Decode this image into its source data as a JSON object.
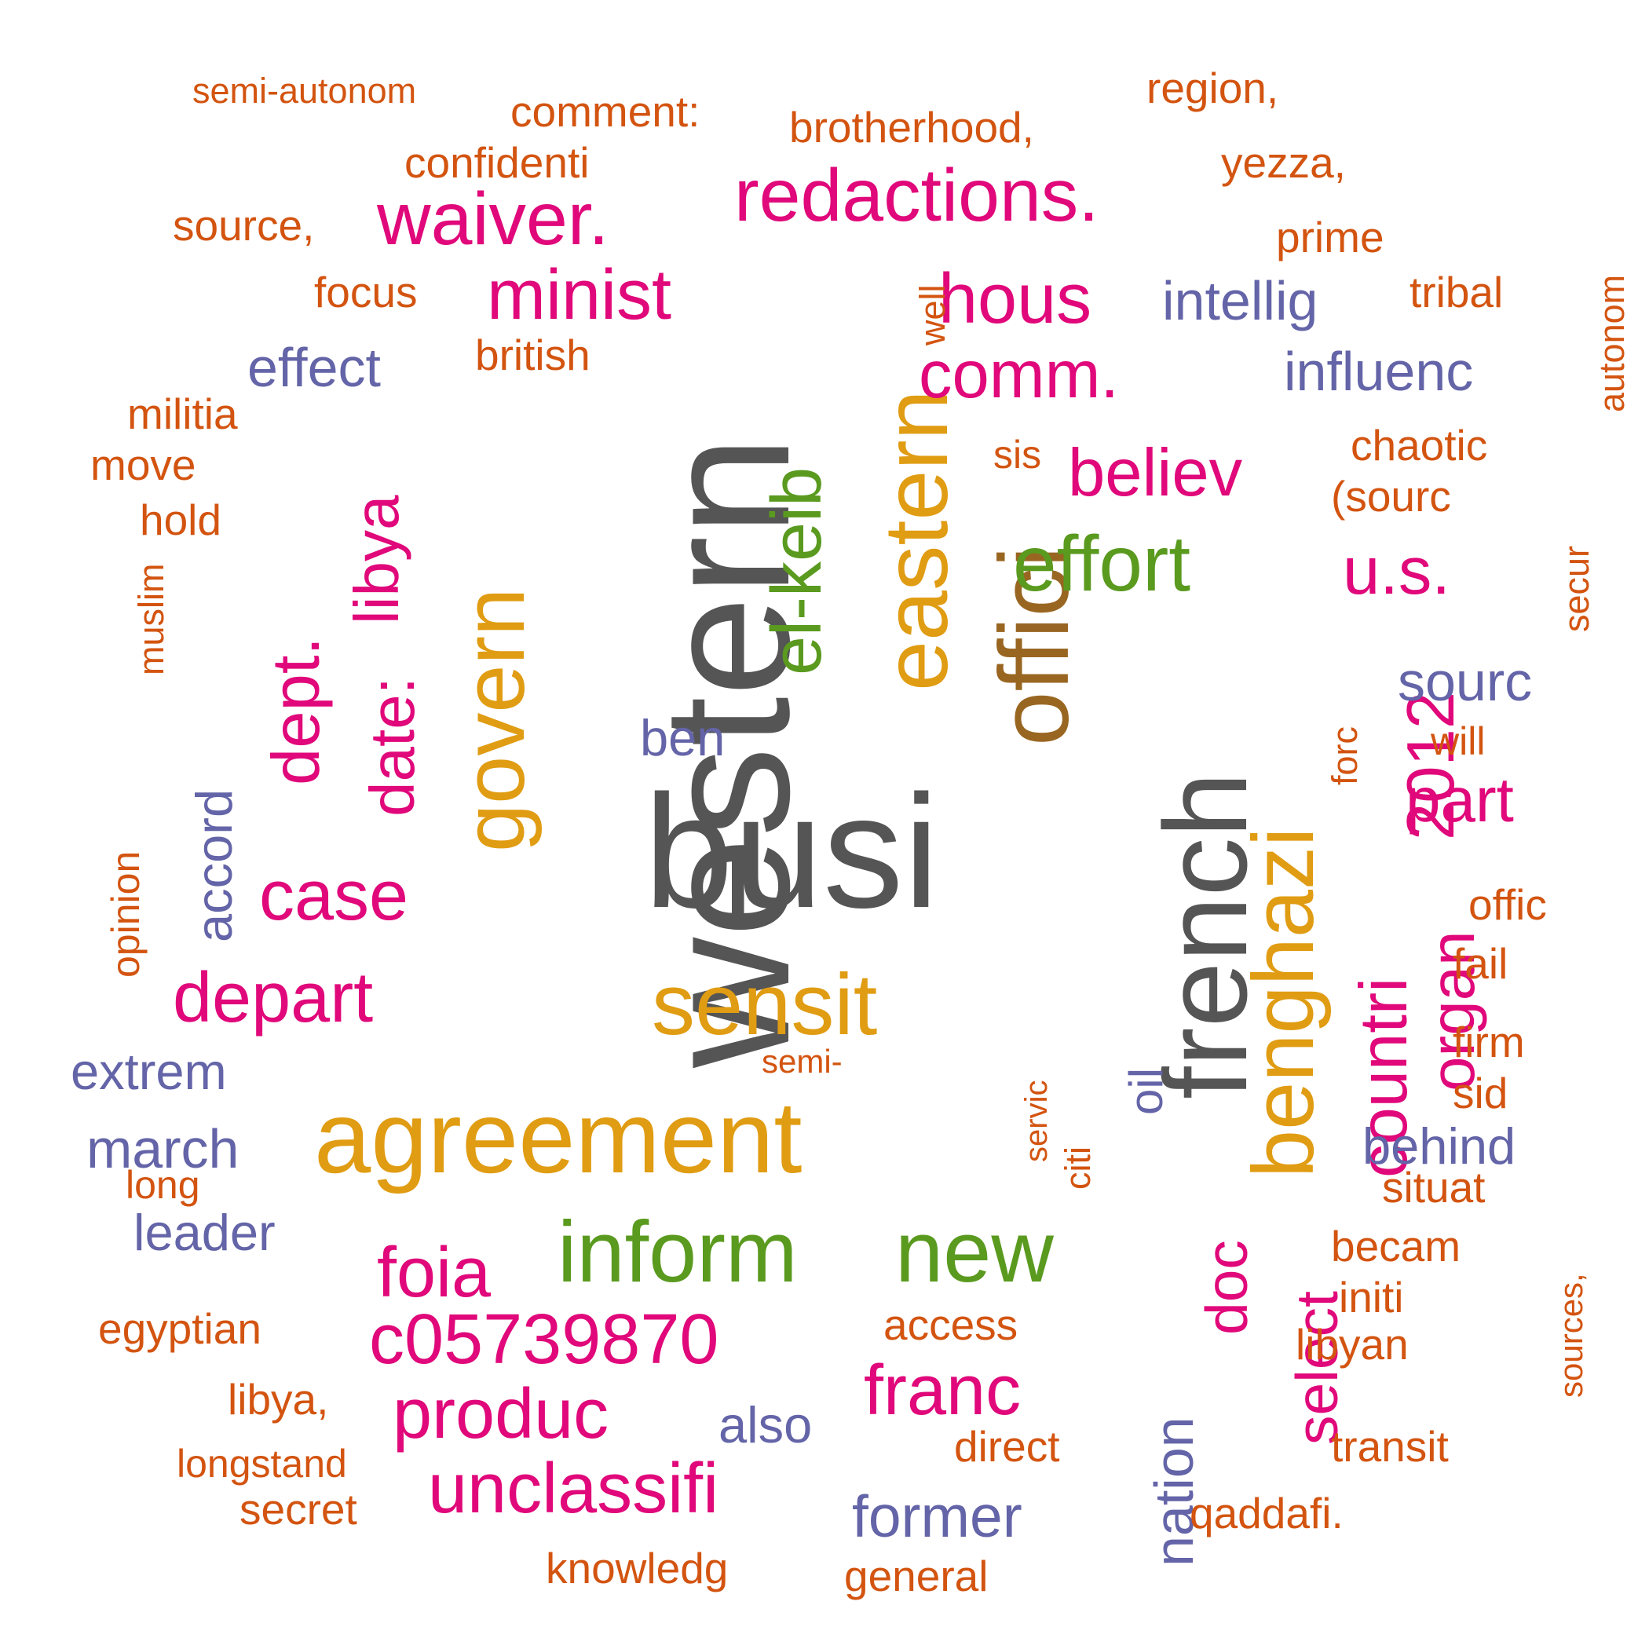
{
  "words": [
    {
      "text": "western",
      "color": "#555555",
      "rotated": true
    },
    {
      "text": "busi",
      "color": "#555555",
      "rotated": false
    },
    {
      "text": "french",
      "color": "#555555",
      "rotated": true
    },
    {
      "text": "offici",
      "color": "#996622",
      "rotated": true
    },
    {
      "text": "eastern",
      "color": "#e09c12",
      "rotated": true
    },
    {
      "text": "agreement",
      "color": "#e09c12",
      "rotated": false
    },
    {
      "text": "sensit",
      "color": "#e09c12",
      "rotated": false
    },
    {
      "text": "govern",
      "color": "#e09c12",
      "rotated": true
    },
    {
      "text": "benghazi",
      "color": "#e09c12",
      "rotated": true
    },
    {
      "text": "el-keib",
      "color": "#5a9a1f",
      "rotated": true
    },
    {
      "text": "effort",
      "color": "#5a9a1f",
      "rotated": false
    },
    {
      "text": "inform",
      "color": "#5a9a1f",
      "rotated": false
    },
    {
      "text": "new",
      "color": "#5a9a1f",
      "rotated": false
    },
    {
      "text": "redactions.",
      "color": "#e0087a",
      "rotated": false
    },
    {
      "text": "waiver.",
      "color": "#e0087a",
      "rotated": false
    },
    {
      "text": "minist",
      "color": "#e0087a",
      "rotated": false
    },
    {
      "text": "hous",
      "color": "#e0087a",
      "rotated": false
    },
    {
      "text": "comm.",
      "color": "#e0087a",
      "rotated": false
    },
    {
      "text": "believ",
      "color": "#e0087a",
      "rotated": false
    },
    {
      "text": "u.s.",
      "color": "#e0087a",
      "rotated": false
    },
    {
      "text": "2012",
      "color": "#e0087a",
      "rotated": true
    },
    {
      "text": "part",
      "color": "#e0087a",
      "rotated": false
    },
    {
      "text": "countri",
      "color": "#e0087a",
      "rotated": true
    },
    {
      "text": "organ",
      "color": "#e0087a",
      "rotated": true
    },
    {
      "text": "dept.",
      "color": "#e0087a",
      "rotated": true
    },
    {
      "text": "libya",
      "color": "#e0087a",
      "rotated": true
    },
    {
      "text": "date:",
      "color": "#e0087a",
      "rotated": true
    },
    {
      "text": "case",
      "color": "#e0087a",
      "rotated": false
    },
    {
      "text": "depart",
      "color": "#e0087a",
      "rotated": false
    },
    {
      "text": "foia",
      "color": "#e0087a",
      "rotated": false
    },
    {
      "text": "c05739870",
      "color": "#e0087a",
      "rotated": false
    },
    {
      "text": "produc",
      "color": "#e0087a",
      "rotated": false
    },
    {
      "text": "unclassifi",
      "color": "#e0087a",
      "rotated": false
    },
    {
      "text": "franc",
      "color": "#e0087a",
      "rotated": false
    },
    {
      "text": "doc",
      "color": "#e0087a",
      "rotated": true
    },
    {
      "text": "select",
      "color": "#e0087a",
      "rotated": true
    },
    {
      "text": "intellig",
      "color": "#6464a8",
      "rotated": false
    },
    {
      "text": "influenc",
      "color": "#6464a8",
      "rotated": false
    },
    {
      "text": "effect",
      "color": "#6464a8",
      "rotated": false
    },
    {
      "text": "sourc",
      "color": "#6464a8",
      "rotated": false
    },
    {
      "text": "ben",
      "color": "#6464a8",
      "rotated": false
    },
    {
      "text": "accord",
      "color": "#6464a8",
      "rotated": true
    },
    {
      "text": "extrem",
      "color": "#6464a8",
      "rotated": false
    },
    {
      "text": "march",
      "color": "#6464a8",
      "rotated": false
    },
    {
      "text": "leader",
      "color": "#6464a8",
      "rotated": false
    },
    {
      "text": "also",
      "color": "#6464a8",
      "rotated": false
    },
    {
      "text": "former",
      "color": "#6464a8",
      "rotated": false
    },
    {
      "text": "nation",
      "color": "#6464a8",
      "rotated": true
    },
    {
      "text": "oil",
      "color": "#6464a8",
      "rotated": true
    },
    {
      "text": "behind",
      "color": "#6464a8",
      "rotated": false
    },
    {
      "text": "semi-autonom",
      "color": "#d35410",
      "rotated": false
    },
    {
      "text": "comment:",
      "color": "#d35410",
      "rotated": false
    },
    {
      "text": "brotherhood,",
      "color": "#d35410",
      "rotated": false
    },
    {
      "text": "region,",
      "color": "#d35410",
      "rotated": false
    },
    {
      "text": "confidenti",
      "color": "#d35410",
      "rotated": false
    },
    {
      "text": "yezza,",
      "color": "#d35410",
      "rotated": false
    },
    {
      "text": "source,",
      "color": "#d35410",
      "rotated": false
    },
    {
      "text": "prime",
      "color": "#d35410",
      "rotated": false
    },
    {
      "text": "focus",
      "color": "#d35410",
      "rotated": false
    },
    {
      "text": "well",
      "color": "#d35410",
      "rotated": true
    },
    {
      "text": "tribal",
      "color": "#d35410",
      "rotated": false
    },
    {
      "text": "autonom",
      "color": "#d35410",
      "rotated": true
    },
    {
      "text": "british",
      "color": "#d35410",
      "rotated": false
    },
    {
      "text": "militia",
      "color": "#d35410",
      "rotated": false
    },
    {
      "text": "move",
      "color": "#d35410",
      "rotated": false
    },
    {
      "text": "hold",
      "color": "#d35410",
      "rotated": false
    },
    {
      "text": "muslim",
      "color": "#d35410",
      "rotated": true
    },
    {
      "text": "sis",
      "color": "#d35410",
      "rotated": false
    },
    {
      "text": "chaotic",
      "color": "#d35410",
      "rotated": false
    },
    {
      "text": "(sourc",
      "color": "#d35410",
      "rotated": false
    },
    {
      "text": "secur",
      "color": "#d35410",
      "rotated": true
    },
    {
      "text": "forc",
      "color": "#d35410",
      "rotated": true
    },
    {
      "text": "will",
      "color": "#d35410",
      "rotated": false
    },
    {
      "text": "opinion",
      "color": "#d35410",
      "rotated": true
    },
    {
      "text": "offic",
      "color": "#d35410",
      "rotated": false
    },
    {
      "text": "fail",
      "color": "#d35410",
      "rotated": false
    },
    {
      "text": "semi-",
      "color": "#d35410",
      "rotated": false
    },
    {
      "text": "firm",
      "color": "#d35410",
      "rotated": false
    },
    {
      "text": "sid",
      "color": "#d35410",
      "rotated": false
    },
    {
      "text": "servic",
      "color": "#d35410",
      "rotated": true
    },
    {
      "text": "citi",
      "color": "#d35410",
      "rotated": true
    },
    {
      "text": "long",
      "color": "#d35410",
      "rotated": false
    },
    {
      "text": "situat",
      "color": "#d35410",
      "rotated": false
    },
    {
      "text": "sources,",
      "color": "#d35410",
      "rotated": true
    },
    {
      "text": "becam",
      "color": "#d35410",
      "rotated": false
    },
    {
      "text": "initi",
      "color": "#d35410",
      "rotated": false
    },
    {
      "text": "egyptian",
      "color": "#d35410",
      "rotated": false
    },
    {
      "text": "access",
      "color": "#d35410",
      "rotated": false
    },
    {
      "text": "libyan",
      "color": "#d35410",
      "rotated": false
    },
    {
      "text": "libya,",
      "color": "#d35410",
      "rotated": false
    },
    {
      "text": "direct",
      "color": "#d35410",
      "rotated": false
    },
    {
      "text": "transit",
      "color": "#d35410",
      "rotated": false
    },
    {
      "text": "longstand",
      "color": "#d35410",
      "rotated": false
    },
    {
      "text": "secret",
      "color": "#d35410",
      "rotated": false
    },
    {
      "text": "qaddafi.",
      "color": "#d35410",
      "rotated": false
    },
    {
      "text": "knowledg",
      "color": "#d35410",
      "rotated": false
    },
    {
      "text": "general",
      "color": "#d35410",
      "rotated": false
    }
  ]
}
